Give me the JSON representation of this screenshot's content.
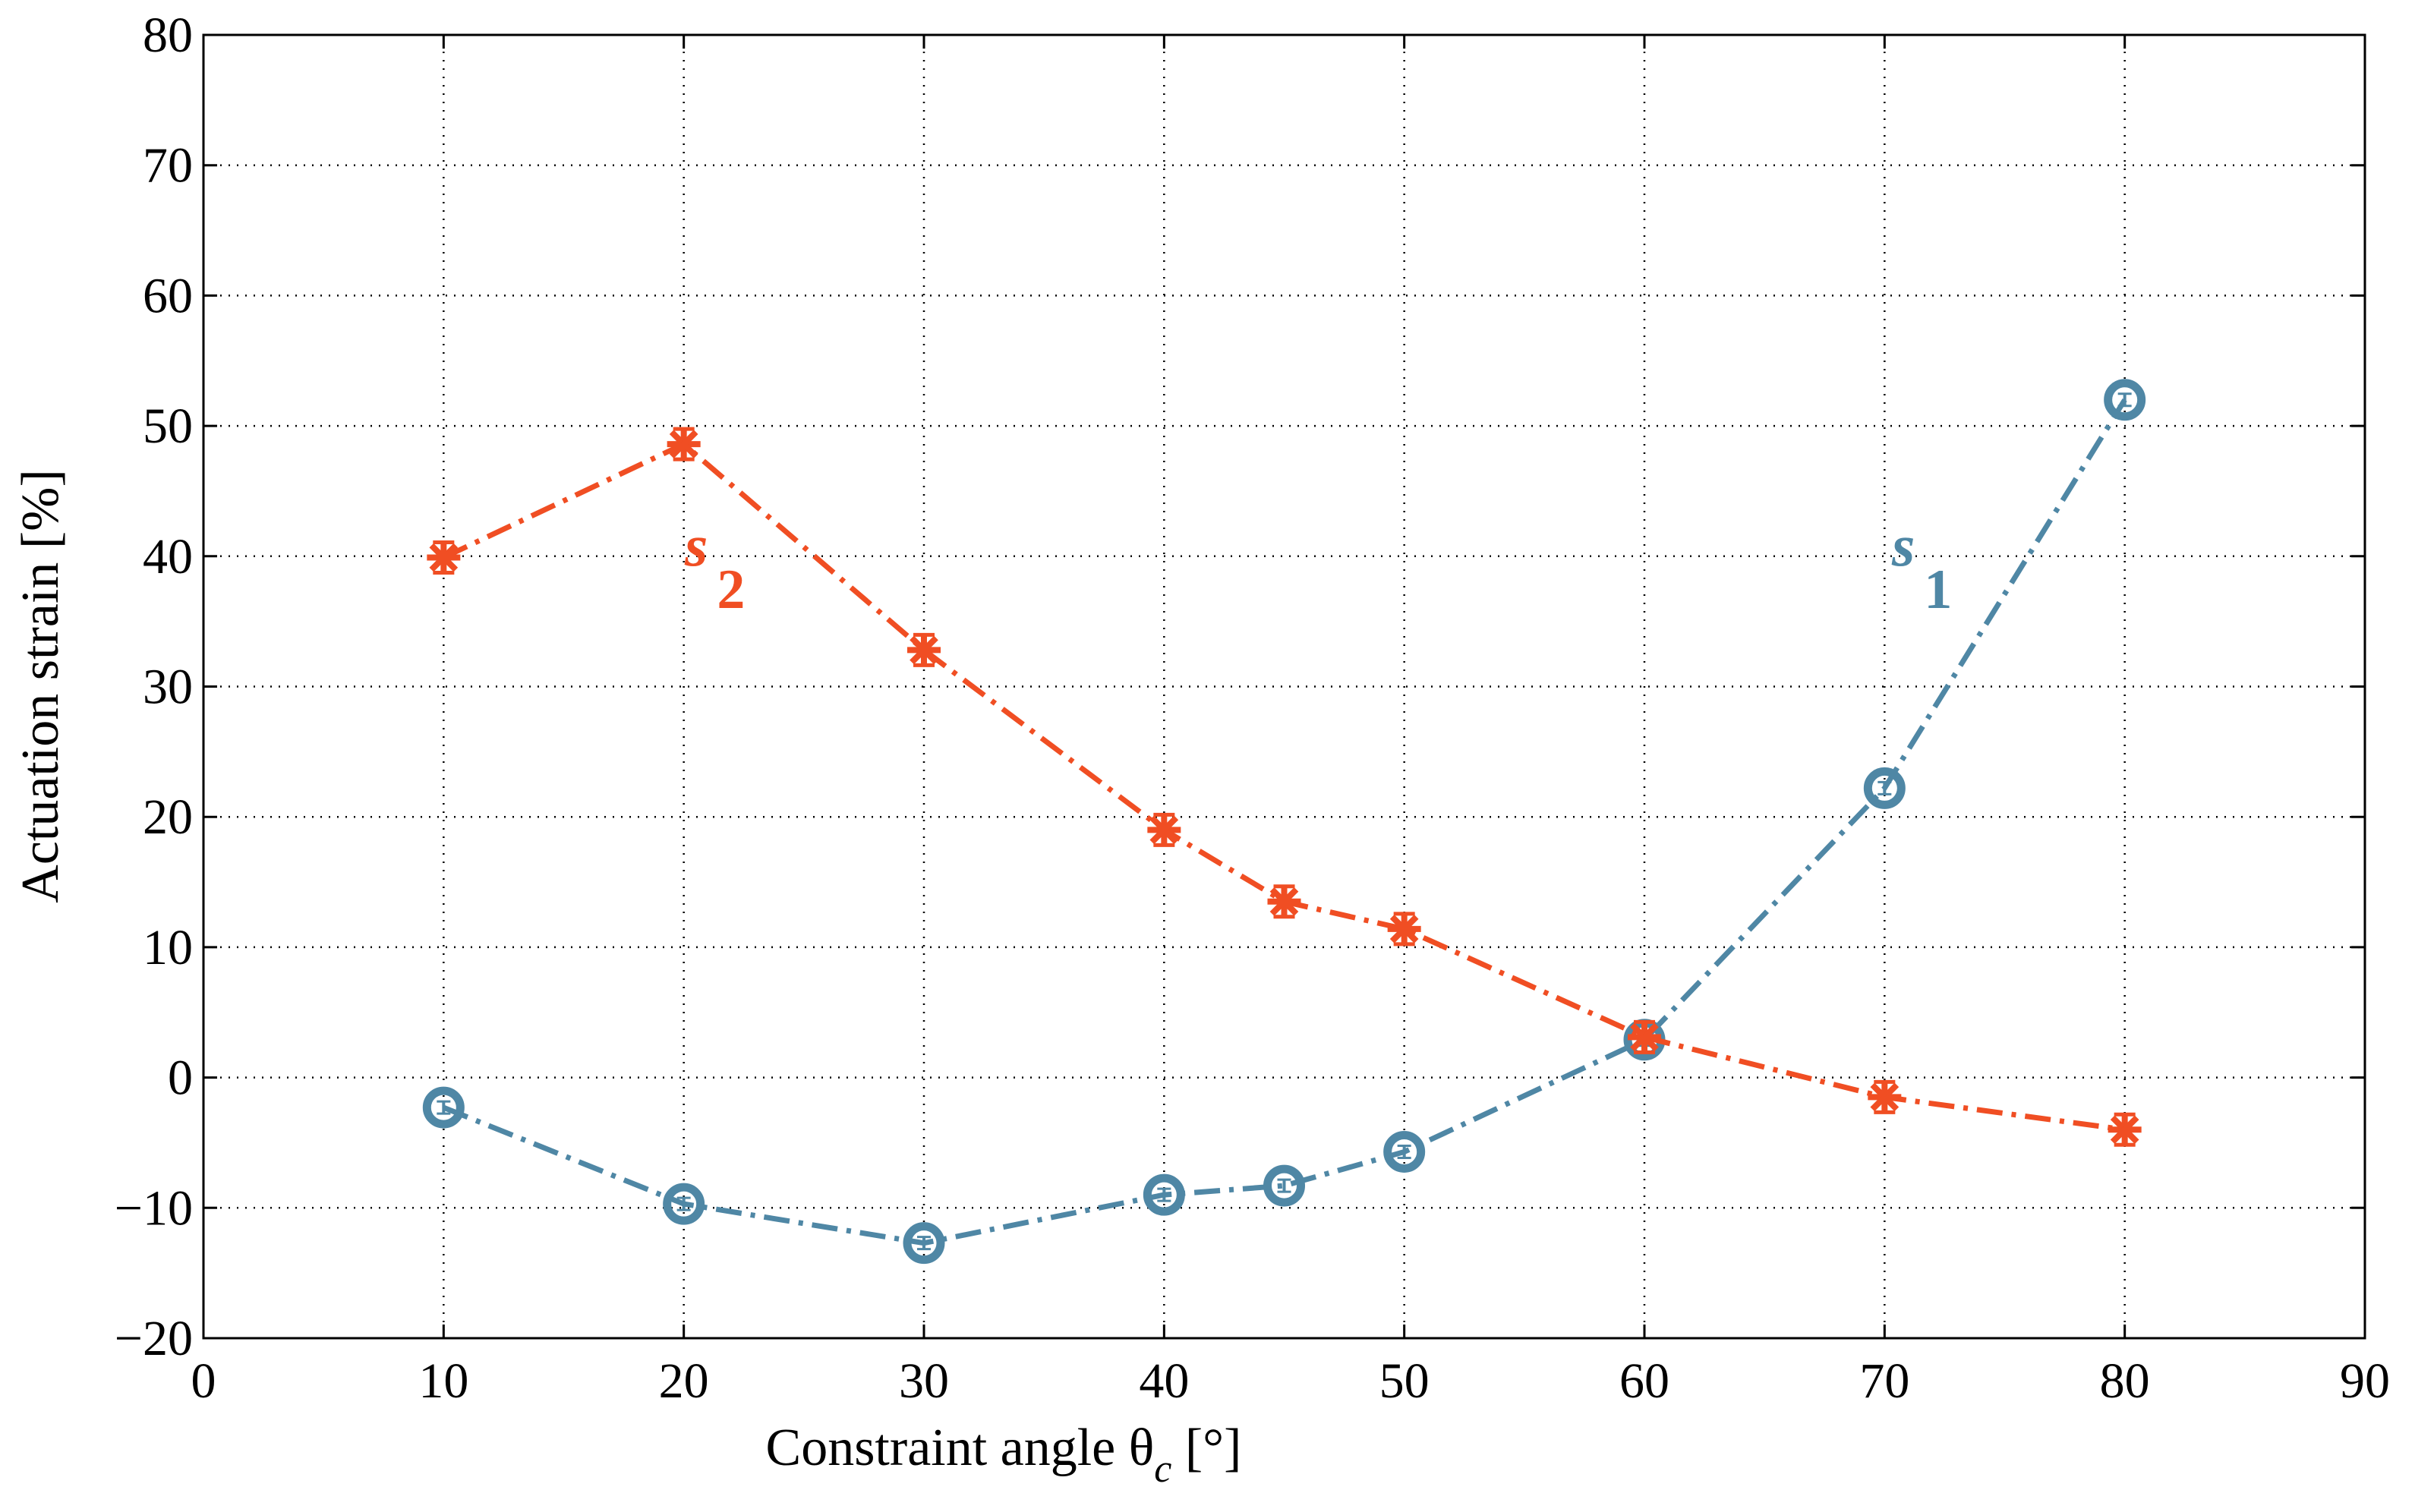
{
  "chart_data": {
    "type": "line",
    "title": "",
    "xlabel": "Constraint angle θ",
    "xlabel_sub": "c",
    "xlabel_unit": " [°]",
    "ylabel": "Actuation strain [%]",
    "xlim": [
      0,
      90
    ],
    "ylim": [
      -20,
      80
    ],
    "xticks": [
      0,
      10,
      20,
      30,
      40,
      50,
      60,
      70,
      80,
      90
    ],
    "yticks": [
      -20,
      -10,
      0,
      10,
      20,
      30,
      40,
      50,
      60,
      70,
      80
    ],
    "xtick_labels": [
      "0",
      "10",
      "20",
      "30",
      "40",
      "50",
      "60",
      "70",
      "80",
      "90"
    ],
    "ytick_labels": [
      "−20",
      "−10",
      "0",
      "10",
      "20",
      "30",
      "40",
      "50",
      "60",
      "70",
      "80"
    ],
    "grid": true,
    "x": [
      10,
      20,
      30,
      40,
      45,
      50,
      60,
      70,
      80
    ],
    "series": [
      {
        "name": "s1",
        "label_main": "s",
        "label_sub": "1",
        "color": "#4f87a5",
        "marker": "circle",
        "line_style": "dash-dot",
        "values": [
          -2.3,
          -9.7,
          -12.7,
          -9.0,
          -8.3,
          -5.7,
          2.9,
          22.2,
          52.0
        ]
      },
      {
        "name": "s2",
        "label_main": "s",
        "label_sub": "2",
        "color": "#f04e23",
        "marker": "asterisk",
        "line_style": "dash-dot",
        "values": [
          39.9,
          48.6,
          32.8,
          19.0,
          13.5,
          11.4,
          3.1,
          -1.5,
          -4.0
        ]
      }
    ]
  }
}
